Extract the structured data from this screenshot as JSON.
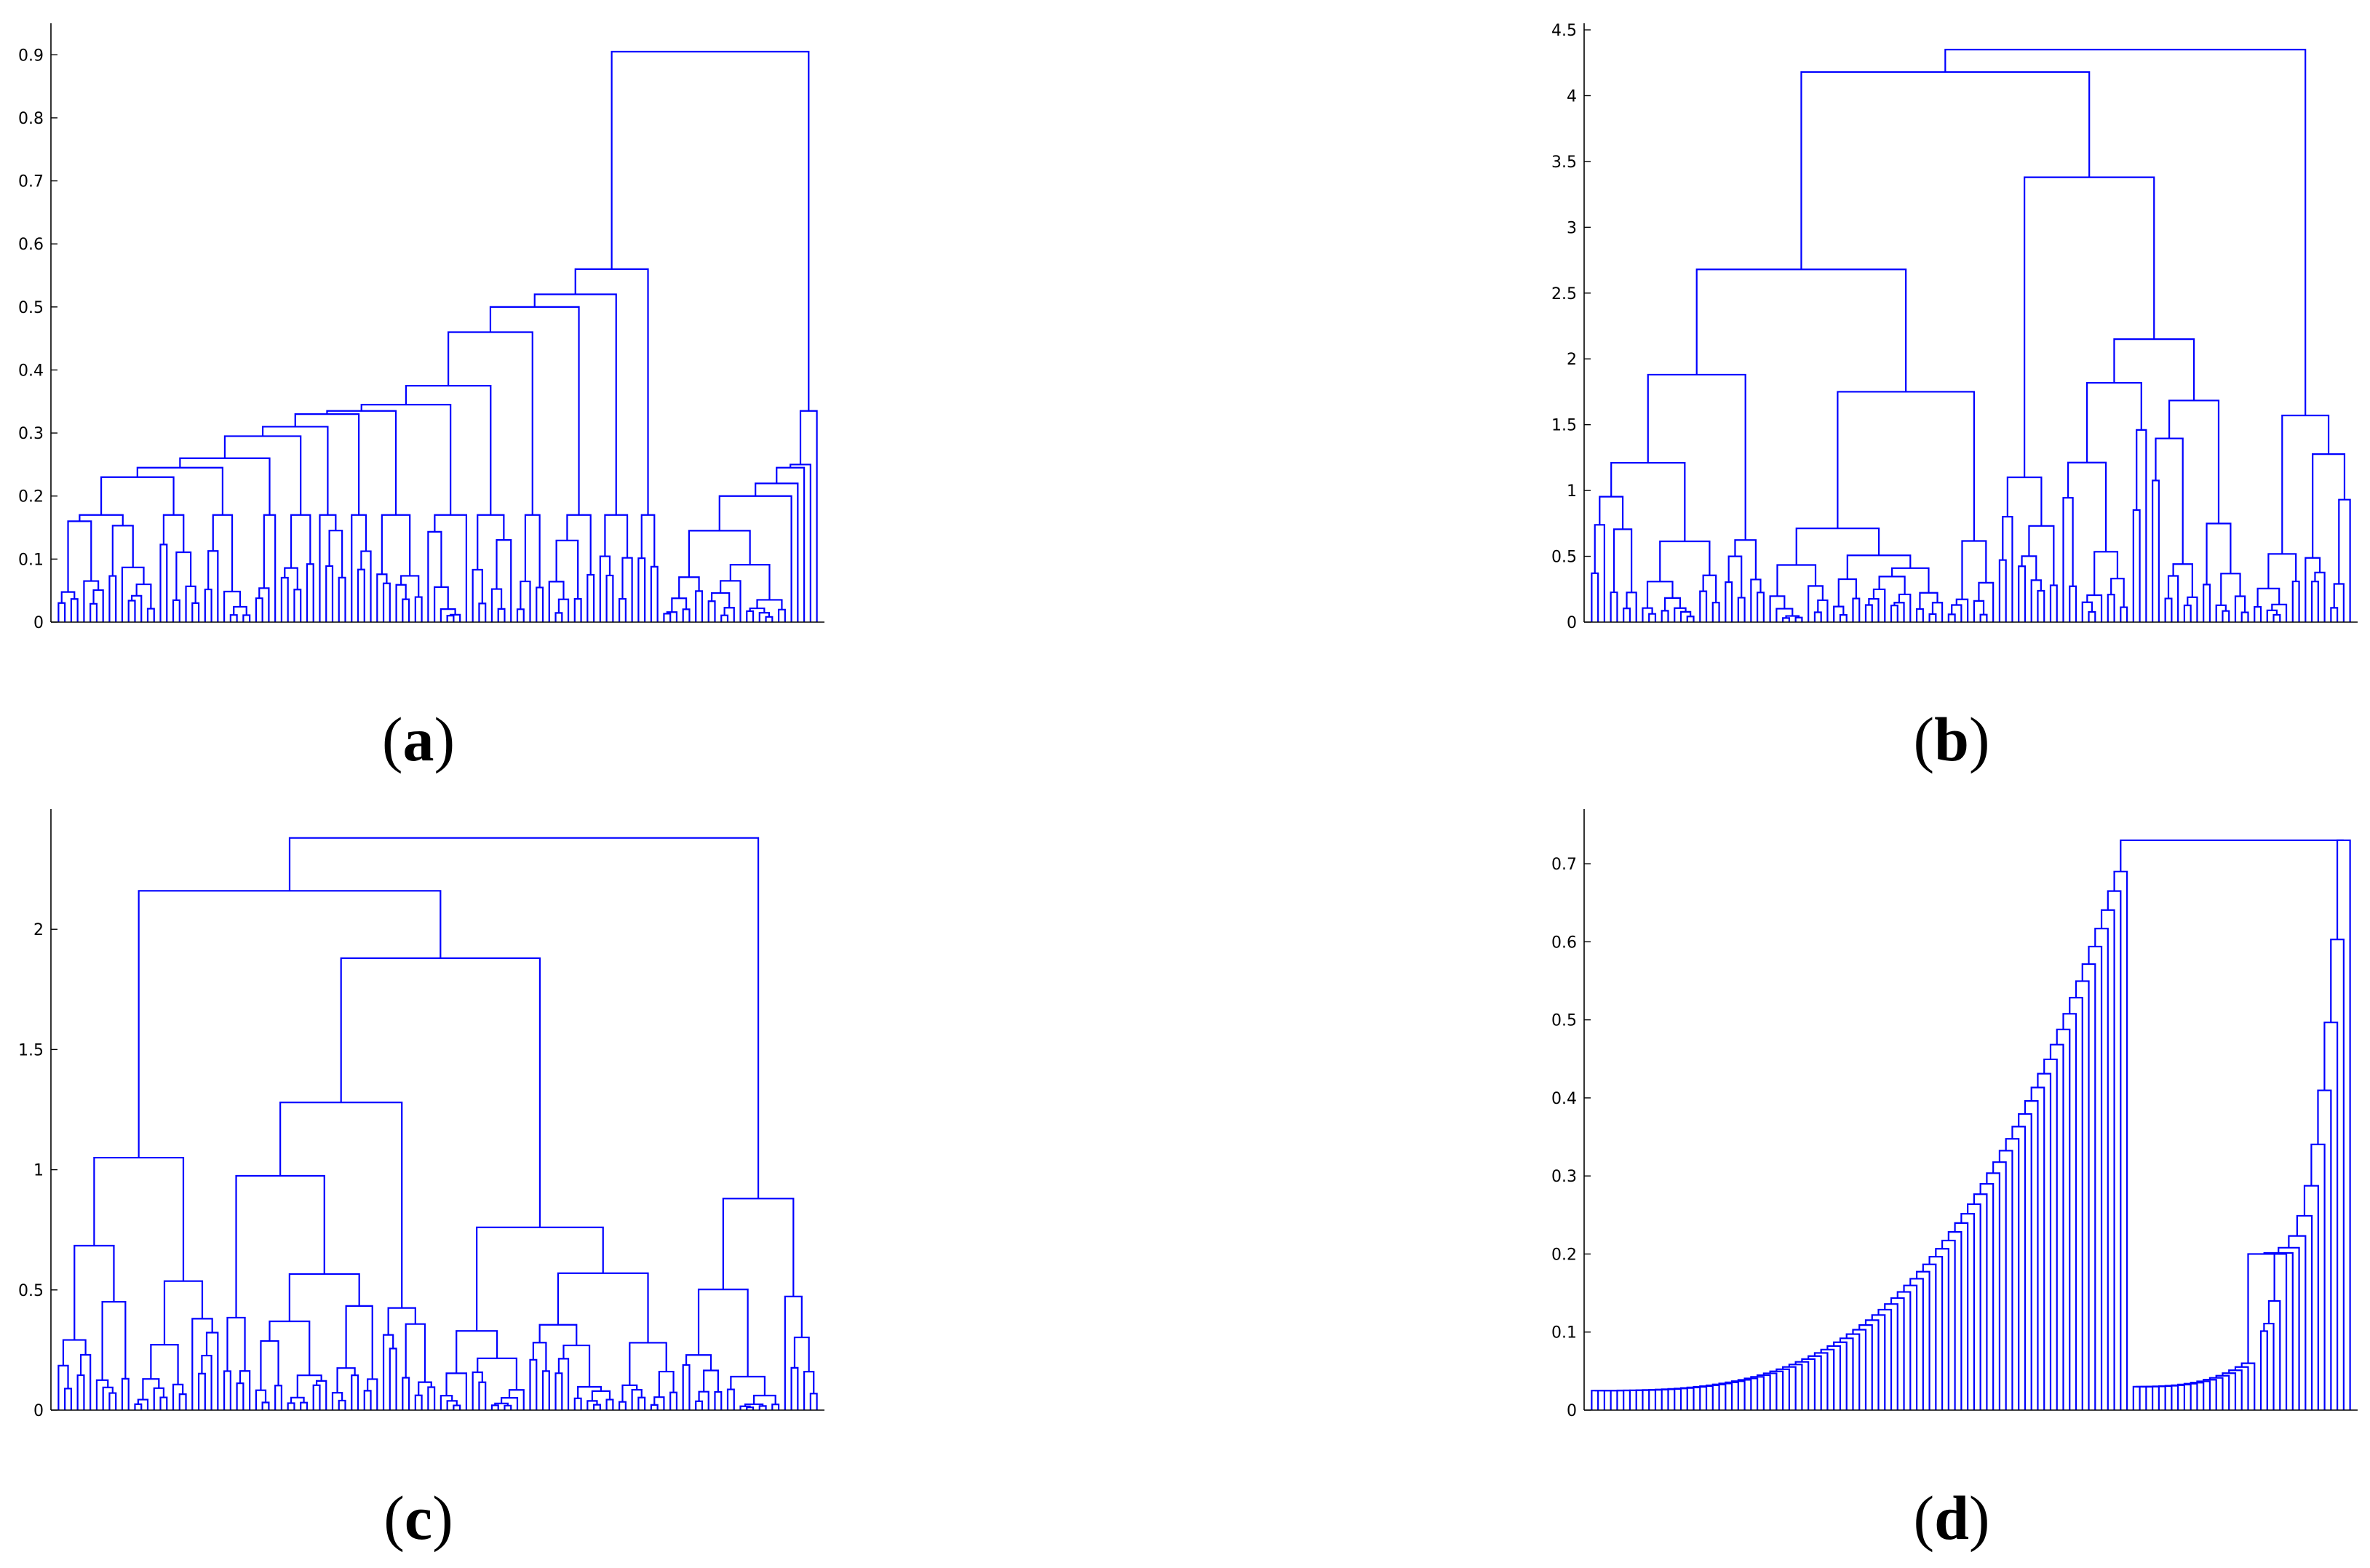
{
  "chart_data": [
    {
      "type": "dendrogram",
      "panel": "a",
      "caption": {
        "open": "(",
        "letter": "a",
        "close": ")"
      },
      "ylim": [
        0,
        0.95
      ],
      "yticks": [
        0,
        0.1,
        0.2,
        0.3,
        0.4,
        0.5,
        0.6,
        0.7,
        0.8,
        0.9
      ],
      "ytick_labels": [
        "0",
        "0.1",
        "0.2",
        "0.3",
        "0.4",
        "0.5",
        "0.6",
        "0.7",
        "0.8",
        "0.9"
      ],
      "leaf_count": 120,
      "root_height": 0.905,
      "main_merges": [
        0.905,
        0.56,
        0.52,
        0.5,
        0.46,
        0.375,
        0.345,
        0.335,
        0.33,
        0.31,
        0.295,
        0.26,
        0.245,
        0.23,
        0.17
      ],
      "cluster_sizes": [
        95,
        25
      ],
      "line_color": "#0000ff"
    },
    {
      "type": "dendrogram",
      "panel": "b",
      "caption": {
        "open": "(",
        "letter": "b",
        "close": ")"
      },
      "ylim": [
        0,
        4.55
      ],
      "yticks": [
        0,
        0.5,
        1,
        1.5,
        2,
        2.5,
        3,
        3.5,
        4,
        4.5
      ],
      "ytick_labels": [
        "0",
        "0.5",
        "1",
        "1.5",
        "2",
        "2.5",
        "3",
        "3.5",
        "4",
        "4.5"
      ],
      "leaf_count": 120,
      "root_height": 4.35,
      "main_merges": [
        4.35,
        4.18,
        3.38,
        2.68,
        2.15,
        1.88,
        1.75,
        1.57,
        1.49,
        1.17,
        1.1,
        1.08,
        1.0,
        0.98,
        0.95
      ],
      "line_color": "#0000ff"
    },
    {
      "type": "dendrogram",
      "panel": "c",
      "caption": {
        "open": "(",
        "letter": "c",
        "close": ")"
      },
      "ylim": [
        0,
        2.5
      ],
      "yticks": [
        0,
        0.5,
        1,
        1.5,
        2
      ],
      "ytick_labels": [
        "0",
        "0.5",
        "1",
        "1.5",
        "2"
      ],
      "leaf_count": 120,
      "root_height": 2.38,
      "main_merges": [
        2.38,
        2.16,
        1.88,
        1.28,
        1.12,
        1.05,
        0.88,
        0.77,
        0.76,
        0.64,
        0.62,
        0.6,
        0.59,
        0.55,
        0.52
      ],
      "line_color": "#0000ff"
    },
    {
      "type": "dendrogram",
      "panel": "d",
      "caption": {
        "open": "(",
        "letter": "d",
        "close": ")"
      },
      "ylim": [
        0,
        0.77
      ],
      "yticks": [
        0,
        0.1,
        0.2,
        0.3,
        0.4,
        0.5,
        0.6,
        0.7
      ],
      "ytick_labels": [
        "0",
        "0.1",
        "0.2",
        "0.3",
        "0.4",
        "0.5",
        "0.6",
        "0.7"
      ],
      "leaf_count": 120,
      "root_height": 0.73,
      "chained_merges_left_range": [
        0.025,
        0.69
      ],
      "chained_merges_right_range": [
        0.03,
        0.73
      ],
      "cross_cluster_merge": 0.2,
      "cluster_sizes": [
        85,
        35
      ],
      "line_color": "#0000ff"
    }
  ]
}
